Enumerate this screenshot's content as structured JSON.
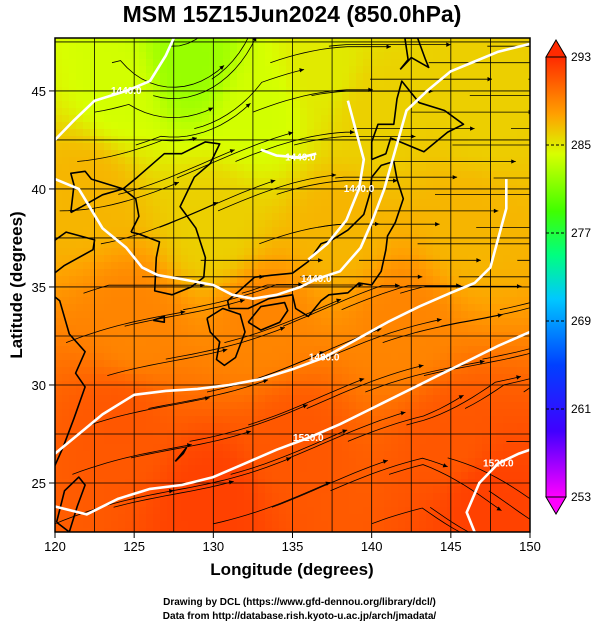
{
  "title": "MSM 15Z15Jun2024 (850.0hPa)",
  "credits": {
    "line1": "Drawing by DCL (https://www.gfd-dennou.org/library/dcl/)",
    "line2": "Data from http://database.rish.kyoto-u.ac.jp/arch/jmadata/"
  },
  "chart_data": {
    "type": "heatmap",
    "xlabel": "Longitude (degrees)",
    "ylabel": "Latitude  (degrees)",
    "xlim": [
      120,
      150
    ],
    "ylim": [
      22.5,
      47.7
    ],
    "x_ticks": [
      120,
      125,
      130,
      135,
      140,
      145,
      150
    ],
    "y_ticks": [
      25,
      30,
      35,
      40,
      45
    ],
    "grid": true,
    "colorbar": {
      "min": 253,
      "max": 293,
      "tick_labels": [
        "293",
        "285",
        "277",
        "269",
        "261",
        "253"
      ],
      "colors": [
        "#ff00ff",
        "#0000ff",
        "#00a0ff",
        "#00ffa0",
        "#30ff00",
        "#c8ff00",
        "#ff8000",
        "#ff3000"
      ]
    },
    "temperature_field_points": [
      {
        "lon": 128.5,
        "lat": 46.5,
        "value": 282
      },
      {
        "lon": 124,
        "lat": 45,
        "value": 284
      },
      {
        "lon": 133,
        "lat": 44,
        "value": 284
      },
      {
        "lon": 137,
        "lat": 46,
        "value": 285
      },
      {
        "lon": 140,
        "lat": 44,
        "value": 286
      },
      {
        "lon": 147,
        "lat": 44,
        "value": 286
      },
      {
        "lon": 122,
        "lat": 40,
        "value": 287
      },
      {
        "lon": 130,
        "lat": 38,
        "value": 286
      },
      {
        "lon": 138,
        "lat": 38,
        "value": 287
      },
      {
        "lon": 146,
        "lat": 38,
        "value": 287
      },
      {
        "lon": 125,
        "lat": 33,
        "value": 289
      },
      {
        "lon": 133,
        "lat": 33,
        "value": 289
      },
      {
        "lon": 142,
        "lat": 33,
        "value": 289
      },
      {
        "lon": 124,
        "lat": 28,
        "value": 291
      },
      {
        "lon": 135,
        "lat": 27,
        "value": 291
      },
      {
        "lon": 145,
        "lat": 27,
        "value": 291
      },
      {
        "lon": 130,
        "lat": 24,
        "value": 292
      },
      {
        "lon": 147,
        "lat": 24,
        "value": 292
      }
    ],
    "height_contours": [
      {
        "label": "1440.0",
        "points": [
          [
            120,
            40.5
          ],
          [
            121.5,
            40
          ],
          [
            123,
            38
          ],
          [
            124.5,
            37
          ],
          [
            125.5,
            36
          ],
          [
            126.5,
            35.6
          ],
          [
            128,
            35.4
          ],
          [
            130,
            35.1
          ],
          [
            131.2,
            34.6
          ],
          [
            132.5,
            34.4
          ],
          [
            134,
            34.6
          ],
          [
            135.5,
            35
          ],
          [
            136.5,
            35.4
          ],
          [
            138,
            35.8
          ],
          [
            139.3,
            37
          ],
          [
            140,
            38.3
          ],
          [
            140.8,
            40
          ],
          [
            141.5,
            42
          ],
          [
            142.2,
            44
          ],
          [
            143.5,
            45
          ],
          [
            145,
            46
          ],
          [
            146.5,
            46.5
          ],
          [
            148,
            47
          ],
          [
            150,
            47.4
          ]
        ]
      },
      {
        "label": "1440.0",
        "points": [
          [
            127.5,
            47.7
          ],
          [
            127,
            46.8
          ],
          [
            126,
            45.5
          ],
          [
            124.5,
            45
          ],
          [
            122.5,
            44.5
          ],
          [
            121.2,
            43.5
          ],
          [
            120,
            42.5
          ]
        ]
      },
      {
        "label": "1440.0",
        "points": [
          [
            133,
            42
          ],
          [
            134,
            41.7
          ],
          [
            135.5,
            41.6
          ],
          [
            136.5,
            41.8
          ]
        ]
      },
      {
        "label": "1440.0",
        "points": [
          [
            138.5,
            44.5
          ],
          [
            139,
            43
          ],
          [
            139.5,
            41.5
          ],
          [
            139.2,
            40
          ],
          [
            138.4,
            38.4
          ],
          [
            137.2,
            37.2
          ],
          [
            136,
            36.4
          ]
        ]
      },
      {
        "label": "1480.0",
        "points": [
          [
            120,
            26.5
          ],
          [
            121.5,
            27.5
          ],
          [
            123,
            28.5
          ],
          [
            125,
            29.5
          ],
          [
            127,
            29.7
          ],
          [
            129,
            29.8
          ],
          [
            131,
            30
          ],
          [
            133,
            30.3
          ],
          [
            135,
            30.8
          ],
          [
            137,
            31.4
          ],
          [
            139,
            32.3
          ],
          [
            141,
            33.2
          ],
          [
            143,
            34
          ],
          [
            145,
            34.7
          ],
          [
            146.5,
            35.2
          ],
          [
            147.5,
            36
          ],
          [
            148,
            37.5
          ],
          [
            148.5,
            39
          ],
          [
            148.5,
            40.5
          ]
        ]
      },
      {
        "label": "1520.0",
        "points": [
          [
            120,
            23.8
          ],
          [
            122,
            23.4
          ],
          [
            124,
            24.2
          ],
          [
            126,
            24.7
          ],
          [
            128,
            24.9
          ],
          [
            130,
            25.3
          ],
          [
            132,
            26
          ],
          [
            134,
            26.7
          ],
          [
            136,
            27.3
          ],
          [
            138,
            28
          ],
          [
            140,
            28.8
          ],
          [
            142,
            29.6
          ],
          [
            144,
            30.4
          ],
          [
            146,
            31.2
          ],
          [
            148,
            32
          ],
          [
            150,
            32.7
          ]
        ]
      },
      {
        "label": "1520.0",
        "points": [
          [
            146.5,
            22.5
          ],
          [
            146,
            23.5
          ],
          [
            146.8,
            25
          ],
          [
            148,
            26
          ],
          [
            149.3,
            26.5
          ],
          [
            150,
            26.7
          ]
        ]
      }
    ],
    "land_masses": [
      {
        "name": "Honshu",
        "points": [
          [
            130.9,
            34.3
          ],
          [
            131.5,
            34.7
          ],
          [
            132.6,
            35.5
          ],
          [
            133.7,
            35.6
          ],
          [
            135,
            35.7
          ],
          [
            136,
            36.3
          ],
          [
            136.8,
            37.2
          ],
          [
            137.5,
            37.4
          ],
          [
            138.5,
            37.9
          ],
          [
            139.5,
            38.7
          ],
          [
            139.9,
            39.8
          ],
          [
            140,
            40.6
          ],
          [
            140.6,
            41.2
          ],
          [
            141.4,
            41.4
          ],
          [
            141.6,
            40.5
          ],
          [
            142,
            39.5
          ],
          [
            141.5,
            38.3
          ],
          [
            141,
            37.6
          ],
          [
            140.9,
            36.9
          ],
          [
            140.6,
            35.8
          ],
          [
            140,
            35.1
          ],
          [
            139.2,
            35.2
          ],
          [
            138.5,
            34.7
          ],
          [
            137.3,
            34.6
          ],
          [
            136.8,
            34.3
          ],
          [
            136,
            33.5
          ],
          [
            135.2,
            33.9
          ],
          [
            135,
            34.6
          ],
          [
            133.5,
            34.4
          ],
          [
            132.2,
            33.9
          ],
          [
            131,
            33.9
          ],
          [
            130.9,
            34.3
          ]
        ]
      },
      {
        "name": "Hokkaido",
        "points": [
          [
            140,
            41.5
          ],
          [
            140.9,
            41.8
          ],
          [
            141.2,
            42.6
          ],
          [
            143.3,
            41.9
          ],
          [
            144.8,
            42.9
          ],
          [
            145.8,
            43.3
          ],
          [
            144.6,
            44
          ],
          [
            143,
            44.4
          ],
          [
            141.9,
            45.5
          ],
          [
            141.6,
            44.6
          ],
          [
            141.4,
            43.3
          ],
          [
            140.4,
            43.3
          ],
          [
            140,
            42.4
          ],
          [
            140,
            41.5
          ]
        ]
      },
      {
        "name": "Kyushu",
        "points": [
          [
            129.6,
            33.4
          ],
          [
            130.6,
            33.9
          ],
          [
            131.7,
            33.6
          ],
          [
            132,
            32.7
          ],
          [
            131.4,
            31.4
          ],
          [
            130.7,
            31
          ],
          [
            130.2,
            31.3
          ],
          [
            130.4,
            32.2
          ],
          [
            129.8,
            32.7
          ],
          [
            129.6,
            33.4
          ]
        ]
      },
      {
        "name": "Shikoku",
        "points": [
          [
            132.2,
            33.2
          ],
          [
            133,
            34
          ],
          [
            134.5,
            34.2
          ],
          [
            134.7,
            33.8
          ],
          [
            134.2,
            33.2
          ],
          [
            133,
            32.8
          ],
          [
            132.2,
            33.2
          ]
        ]
      },
      {
        "name": "Korea",
        "points": [
          [
            124.8,
            37.8
          ],
          [
            125.3,
            37.7
          ],
          [
            126.6,
            37.3
          ],
          [
            126.4,
            36.5
          ],
          [
            126.3,
            34.8
          ],
          [
            127.4,
            34.6
          ],
          [
            128.6,
            35
          ],
          [
            129.4,
            35.5
          ],
          [
            129.5,
            36.5
          ],
          [
            128.9,
            38
          ],
          [
            127.9,
            39.1
          ],
          [
            128.8,
            40.6
          ],
          [
            129.8,
            41.3
          ],
          [
            130.4,
            42.3
          ],
          [
            129.5,
            42.4
          ],
          [
            128,
            41.8
          ],
          [
            126.9,
            41.8
          ],
          [
            125.2,
            40.6
          ],
          [
            124.3,
            40
          ],
          [
            125.1,
            39.5
          ],
          [
            125.3,
            38.6
          ],
          [
            124.8,
            37.8
          ]
        ]
      },
      {
        "name": "Sakhalin",
        "points": [
          [
            141.8,
            46.1
          ],
          [
            142.3,
            46.6
          ],
          [
            142.1,
            47.7
          ],
          [
            142.9,
            47.7
          ],
          [
            143.4,
            46.6
          ],
          [
            143.6,
            46.2
          ],
          [
            142.5,
            46.7
          ],
          [
            141.8,
            46.1
          ]
        ]
      },
      {
        "name": "Shandong",
        "points": [
          [
            119.5,
            37.1
          ],
          [
            120.7,
            37.8
          ],
          [
            122.5,
            37.4
          ],
          [
            122.4,
            36.9
          ],
          [
            120.6,
            36.1
          ],
          [
            119.8,
            35.6
          ],
          [
            119.5,
            37.1
          ]
        ]
      },
      {
        "name": "Liaodong",
        "points": [
          [
            121,
            38.8
          ],
          [
            121.7,
            39.1
          ],
          [
            123,
            39.7
          ],
          [
            124.3,
            40
          ],
          [
            122.3,
            40.5
          ],
          [
            121.9,
            40.9
          ],
          [
            121,
            40.8
          ],
          [
            121.2,
            40.2
          ],
          [
            121,
            38.8
          ]
        ]
      },
      {
        "name": "China coast",
        "points": [
          [
            119.5,
            25
          ],
          [
            120.5,
            26.8
          ],
          [
            121.2,
            28.3
          ],
          [
            121.9,
            29.9
          ],
          [
            121.3,
            30.6
          ],
          [
            121.9,
            31.7
          ],
          [
            120.9,
            32.6
          ],
          [
            120.3,
            34.3
          ],
          [
            119.5,
            34.8
          ]
        ]
      },
      {
        "name": "Taiwan",
        "points": [
          [
            120.1,
            23
          ],
          [
            120.6,
            24.6
          ],
          [
            121.5,
            25.3
          ],
          [
            121.9,
            24.9
          ],
          [
            121.4,
            23.8
          ],
          [
            120.9,
            22.5
          ],
          [
            120.1,
            23
          ]
        ]
      },
      {
        "name": "Jeju",
        "points": [
          [
            126.2,
            33.3
          ],
          [
            126.9,
            33.5
          ],
          [
            126.9,
            33.2
          ],
          [
            126.2,
            33.3
          ]
        ]
      },
      {
        "name": "Okinawa",
        "points": [
          [
            127.6,
            26.1
          ],
          [
            128.3,
            26.8
          ],
          [
            128.1,
            26.5
          ],
          [
            127.6,
            26.1
          ]
        ]
      }
    ]
  }
}
